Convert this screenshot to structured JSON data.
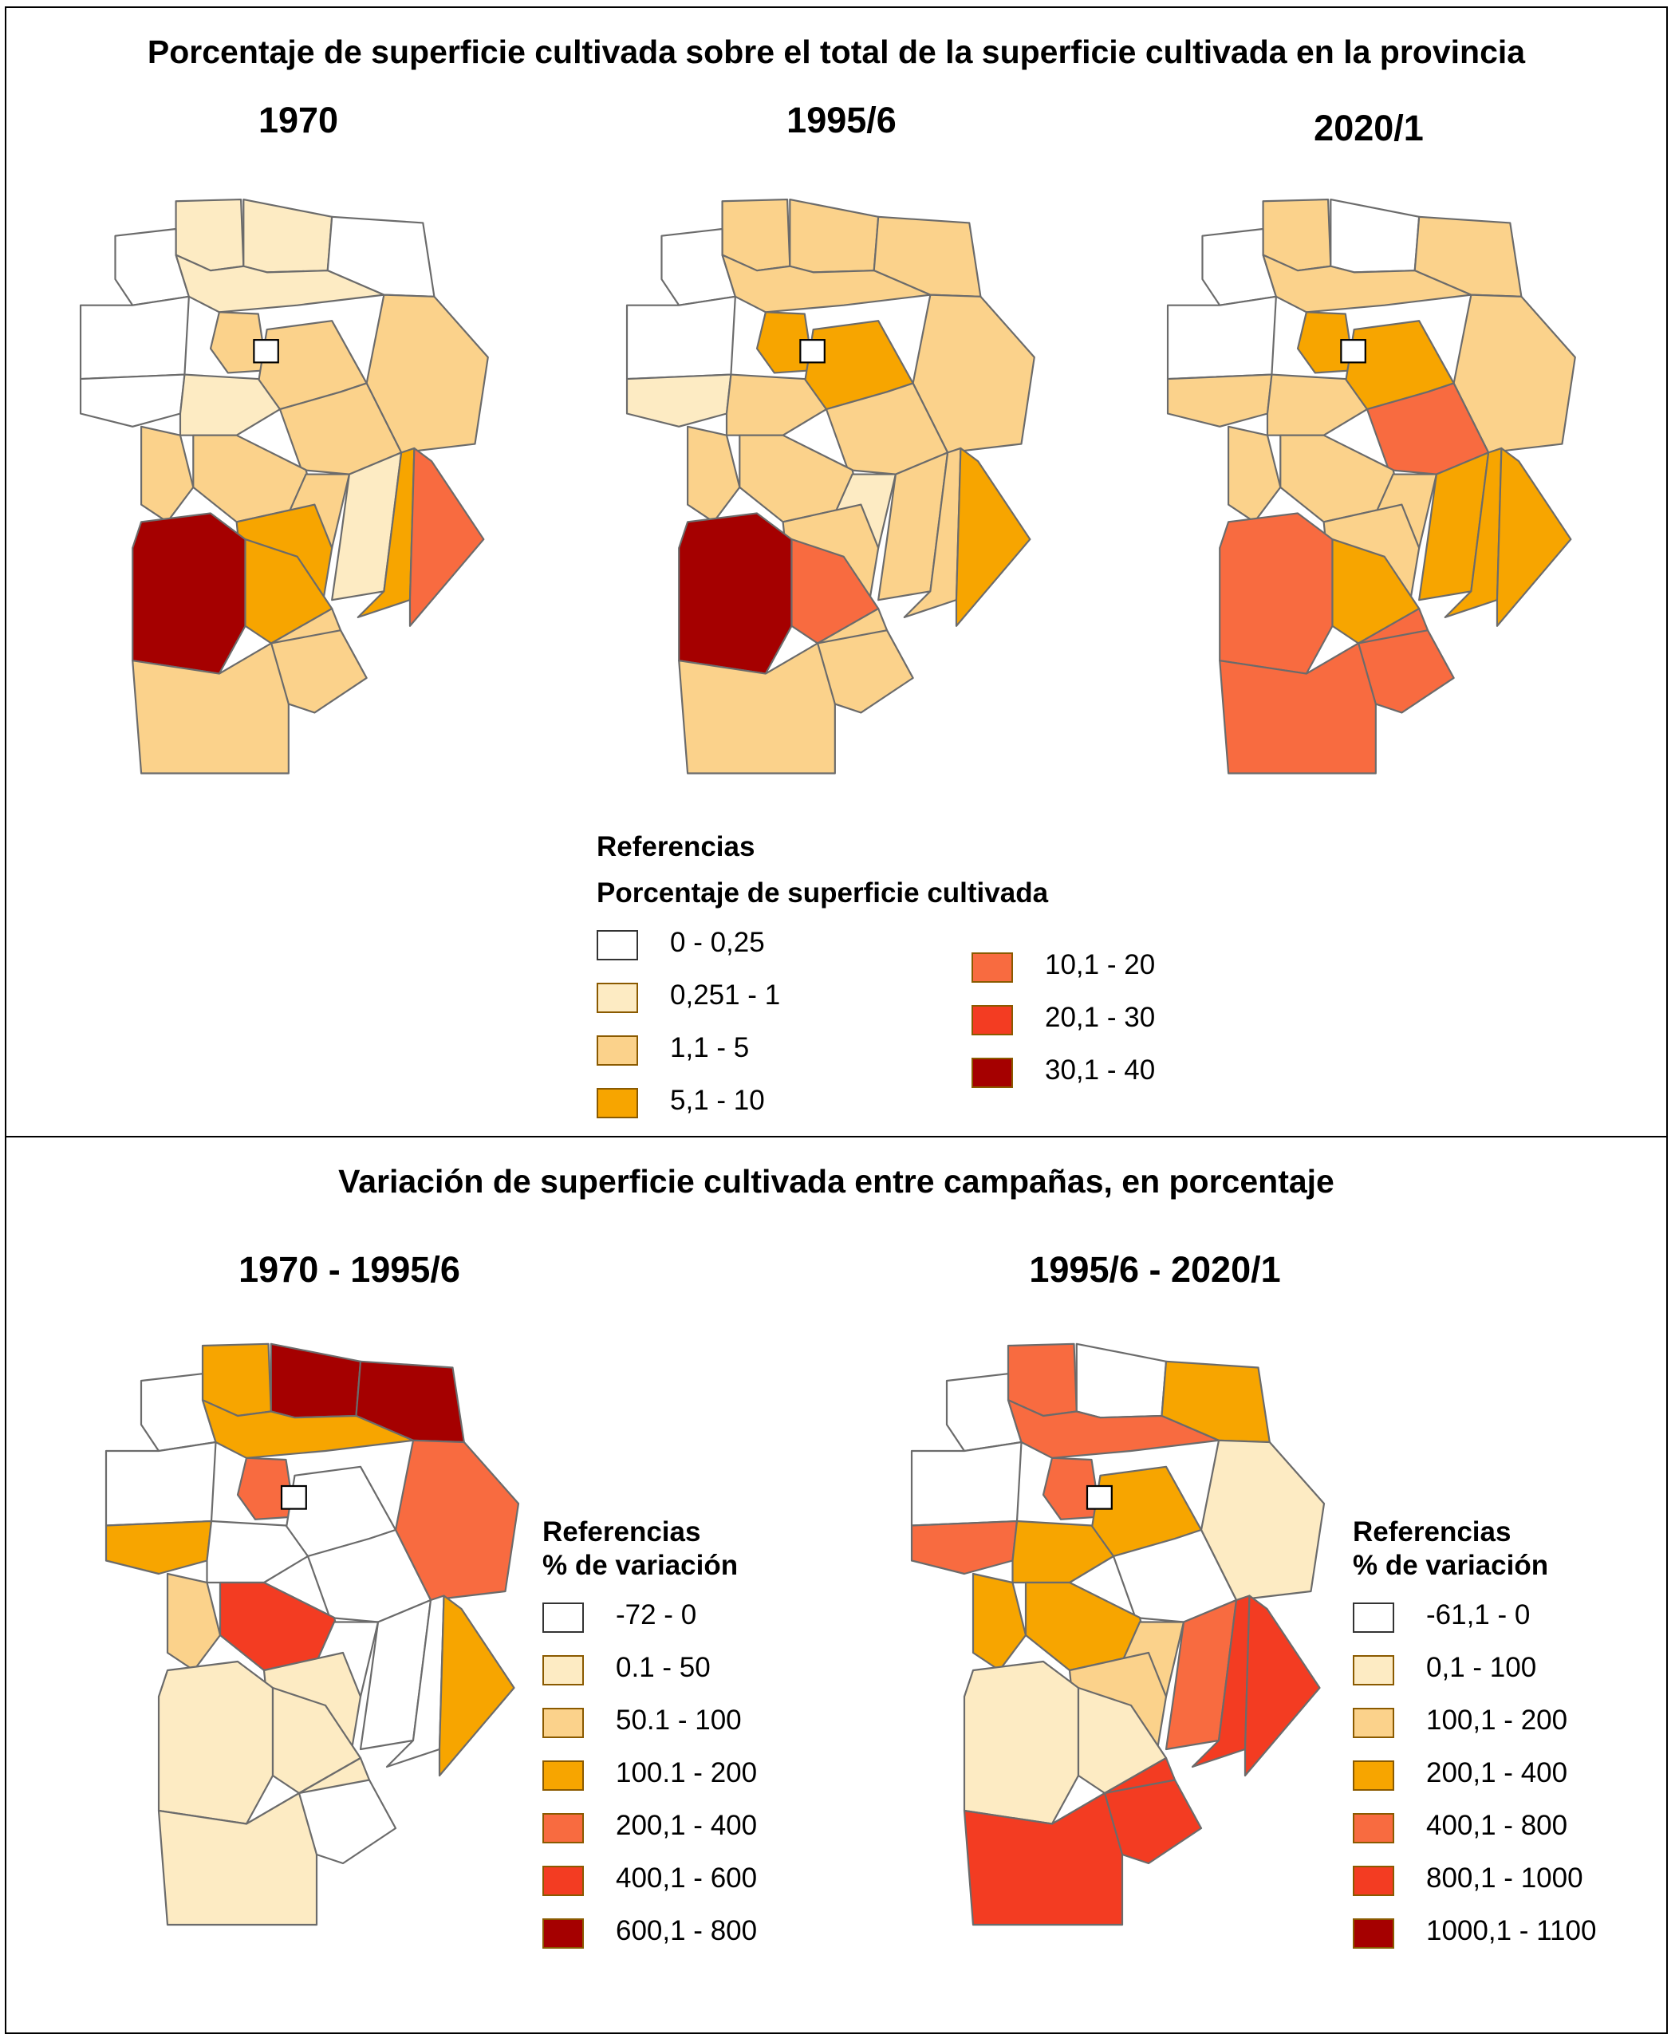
{
  "top": {
    "title": "Porcentaje de superficie cultivada sobre el total de la superficie cultivada en la provincia",
    "maps": [
      {
        "title": "1970",
        "fills": [
          1,
          1,
          0,
          0,
          0,
          1,
          2,
          2,
          2,
          0,
          1,
          2,
          2,
          2,
          2,
          1,
          3,
          3,
          4,
          6,
          3,
          2,
          2
        ]
      },
      {
        "title": "1995/6",
        "fills": [
          2,
          2,
          2,
          0,
          0,
          2,
          2,
          3,
          3,
          1,
          2,
          2,
          2,
          2,
          1,
          2,
          2,
          2,
          3,
          6,
          4,
          2,
          2
        ]
      },
      {
        "title": "2020/1",
        "fills": [
          2,
          0,
          2,
          0,
          0,
          2,
          2,
          3,
          3,
          2,
          2,
          4,
          2,
          2,
          2,
          3,
          2,
          3,
          3,
          4,
          3,
          4,
          4
        ]
      }
    ],
    "legend": {
      "title": "Referencias",
      "subtitle": "Porcentaje de superficie cultivada",
      "items": [
        {
          "label": "0 - 0,25",
          "color": "#ffffff"
        },
        {
          "label": "0,251 - 1",
          "color": "#fdebc3"
        },
        {
          "label": "1,1 - 5",
          "color": "#fbd28b"
        },
        {
          "label": "5,1 - 10",
          "color": "#f7a500"
        },
        {
          "label": "10,1 - 20",
          "color": "#f86b40"
        },
        {
          "label": "20,1 - 30",
          "color": "#f33c22"
        },
        {
          "label": "30,1 - 40",
          "color": "#a50000"
        }
      ]
    }
  },
  "bottom": {
    "title": "Variación de superficie cultivada entre campañas, en porcentaje",
    "maps": [
      {
        "title": "1970 - 1995/6",
        "fills": [
          3,
          6,
          6,
          0,
          0,
          3,
          4,
          4,
          0,
          3,
          0,
          0,
          2,
          5,
          0,
          0,
          1,
          0,
          3,
          1,
          1,
          1,
          0
        ],
        "legend": {
          "title": "Referencias",
          "subtitle": "% de variación",
          "items": [
            {
              "label": "-72 - 0",
              "color": "#ffffff"
            },
            {
              "label": "0.1 - 50",
              "color": "#fdebc3"
            },
            {
              "label": "50.1 - 100",
              "color": "#fbd28b"
            },
            {
              "label": "100.1 - 200",
              "color": "#f7a500"
            },
            {
              "label": "200,1 - 400",
              "color": "#f86b40"
            },
            {
              "label": "400,1 - 600",
              "color": "#f33c22"
            },
            {
              "label": "600,1 - 800",
              "color": "#a50000"
            }
          ]
        }
      },
      {
        "title": "1995/6 - 2020/1",
        "fills": [
          4,
          0,
          3,
          0,
          0,
          4,
          1,
          4,
          3,
          4,
          3,
          0,
          3,
          3,
          2,
          4,
          2,
          5,
          5,
          1,
          1,
          5,
          5
        ],
        "legend": {
          "title": "Referencias",
          "subtitle": "% de variación",
          "items": [
            {
              "label": "-61,1 - 0",
              "color": "#ffffff"
            },
            {
              "label": "0,1 - 100",
              "color": "#fdebc3"
            },
            {
              "label": "100,1 - 200",
              "color": "#fbd28b"
            },
            {
              "label": "200,1 - 400",
              "color": "#f7a500"
            },
            {
              "label": "400,1 - 800",
              "color": "#f86b40"
            },
            {
              "label": "800,1 - 1000",
              "color": "#f33c22"
            },
            {
              "label": "1000,1 - 1100",
              "color": "#a50000"
            }
          ]
        }
      }
    ]
  }
}
